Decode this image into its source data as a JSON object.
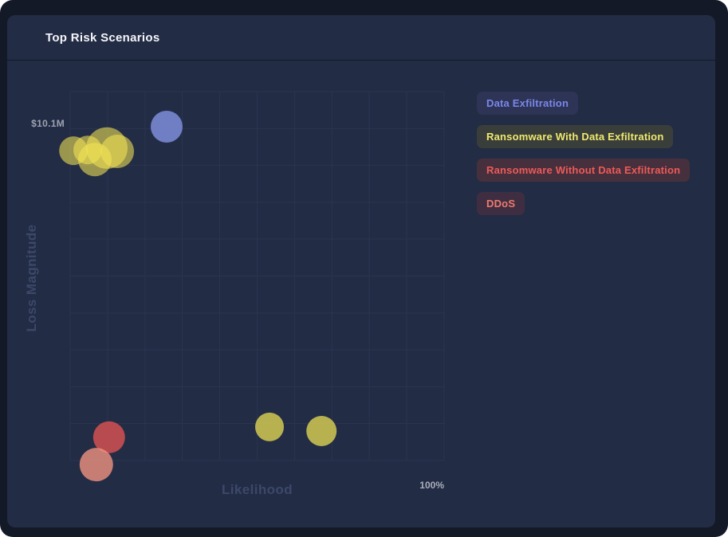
{
  "card": {
    "title": "Top Risk Scenarios"
  },
  "colors": {
    "page_background": "#ffffff",
    "outer_panel": "#141927",
    "card_background": "#232c45",
    "header_divider": "#111827",
    "gridline": "#2b344f",
    "tick_text": "#9ba3b2",
    "axis_label_text": "#3c486a"
  },
  "legend": {
    "items": [
      {
        "label": "Data Exfiltration",
        "text_color": "#7b87e8",
        "bg_color": "#2d3456"
      },
      {
        "label": "Ransomware With Data Exfiltration",
        "text_color": "#efe96d",
        "bg_color": "#3a3e3b"
      },
      {
        "label": "Ransomware Without Data Exfiltration",
        "text_color": "#ee5a57",
        "bg_color": "#46303e"
      },
      {
        "label": "DDoS",
        "text_color": "#ef7b6d",
        "bg_color": "#3f2e42"
      }
    ]
  },
  "chart_data": {
    "type": "scatter",
    "subtype": "bubble",
    "title": "Top Risk Scenarios",
    "xlabel": "Likelihood",
    "ylabel": "Loss Magnitude",
    "grid": {
      "columns": 10,
      "rows": 10
    },
    "x_axis": {
      "min_pct": 0,
      "max_pct": 100,
      "max_tick_label": "100%"
    },
    "y_axis": {
      "tick_label": "$10.1M",
      "tick_fraction_from_top": 0.1
    },
    "series": [
      {
        "name": "Data Exfiltration",
        "color": "#7583cb",
        "opacity": 0.95,
        "points": [
          {
            "likelihood_pct": 25.8,
            "magnitude_frac": 0.905,
            "r": 20
          }
        ]
      },
      {
        "name": "Ransomware With Data Exfiltration",
        "color": "#f3e455",
        "opacity": 0.58,
        "points": [
          {
            "likelihood_pct": 0.9,
            "magnitude_frac": 0.84,
            "r": 18
          },
          {
            "likelihood_pct": 4.7,
            "magnitude_frac": 0.842,
            "r": 18
          },
          {
            "likelihood_pct": 6.6,
            "magnitude_frac": 0.816,
            "r": 21
          },
          {
            "likelihood_pct": 9.8,
            "magnitude_frac": 0.847,
            "r": 26
          },
          {
            "likelihood_pct": 12.6,
            "magnitude_frac": 0.838,
            "r": 21
          },
          {
            "likelihood_pct": 53.3,
            "magnitude_frac": 0.091,
            "r": 18,
            "opacity": 0.72
          },
          {
            "likelihood_pct": 67.2,
            "magnitude_frac": 0.08,
            "r": 19,
            "opacity": 0.72
          }
        ]
      },
      {
        "name": "Ransomware Without Data Exfiltration",
        "color": "#e25552",
        "opacity": 0.78,
        "points": [
          {
            "likelihood_pct": 10.4,
            "magnitude_frac": 0.063,
            "r": 20
          }
        ]
      },
      {
        "name": "DDoS",
        "color": "#ef937f",
        "opacity": 0.8,
        "points": [
          {
            "likelihood_pct": 7.0,
            "magnitude_frac": -0.011,
            "r": 21
          }
        ]
      }
    ]
  }
}
